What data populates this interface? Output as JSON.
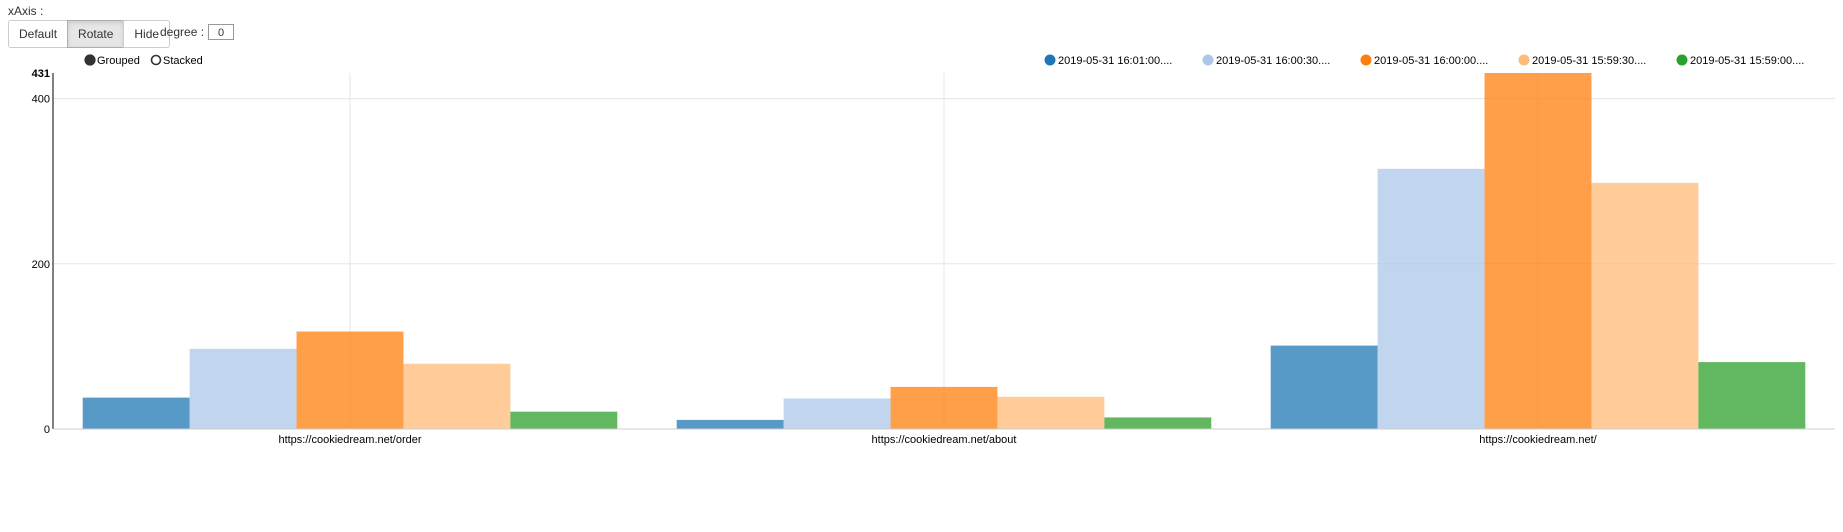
{
  "controls": {
    "xaxis_label": "xAxis :",
    "buttons": [
      {
        "label": "Default",
        "active": false
      },
      {
        "label": "Rotate",
        "active": true
      },
      {
        "label": "Hide",
        "active": false
      }
    ],
    "degree_label": "degree :",
    "degree_value": "0"
  },
  "chart_data": {
    "type": "bar",
    "mode_options": [
      {
        "label": "Grouped",
        "selected": true
      },
      {
        "label": "Stacked",
        "selected": false
      }
    ],
    "categories": [
      "https://cookiedream.net/order",
      "https://cookiedream.net/about",
      "https://cookiedream.net/"
    ],
    "series": [
      {
        "name": "2019-05-31 16:01:00....",
        "color": "#1f77b4",
        "values": [
          38,
          11,
          101
        ]
      },
      {
        "name": "2019-05-31 16:00:30....",
        "color": "#aec7e8",
        "values": [
          97,
          37,
          315
        ]
      },
      {
        "name": "2019-05-31 16:00:00....",
        "color": "#ff7f0e",
        "values": [
          118,
          51,
          431
        ]
      },
      {
        "name": "2019-05-31 15:59:30....",
        "color": "#ffbb78",
        "values": [
          79,
          39,
          298
        ]
      },
      {
        "name": "2019-05-31 15:59:00....",
        "color": "#2ca02c",
        "values": [
          21,
          14,
          81
        ]
      }
    ],
    "yticks": [
      0,
      200,
      400,
      431
    ],
    "ylim": [
      0,
      431
    ],
    "grid": true,
    "legend_position": "top-right",
    "xlabel": "",
    "ylabel": ""
  }
}
